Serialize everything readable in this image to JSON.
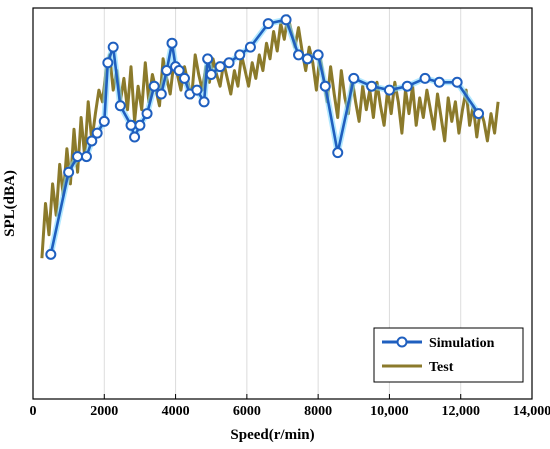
{
  "chart_data": {
    "type": "line",
    "title": "",
    "xlabel": "Speed(r/min)",
    "ylabel": "SPL(dBA)",
    "xlim": [
      0,
      14000
    ],
    "ylim": [
      0,
      1
    ],
    "x_ticks": [
      0,
      2000,
      4000,
      6000,
      8000,
      10000,
      12000,
      14000
    ],
    "x_tick_labels": [
      "0",
      "2000",
      "4000",
      "6000",
      "8000",
      "10,000",
      "12,000",
      "14,000"
    ],
    "y_tick_labels_shown": false,
    "grid": true,
    "legend_position": "bottom-right",
    "series": [
      {
        "name": "Simulation",
        "color": "#1f5fbf",
        "marker": "circle",
        "x": [
          500,
          1000,
          1250,
          1500,
          1650,
          1800,
          2000,
          2100,
          2250,
          2450,
          2750,
          2850,
          3000,
          3200,
          3400,
          3600,
          3750,
          3900,
          4000,
          4100,
          4250,
          4400,
          4600,
          4800,
          4900,
          5000,
          5250,
          5500,
          5800,
          6100,
          6600,
          7100,
          7450,
          7700,
          8000,
          8200,
          8550,
          9000,
          9500,
          10000,
          10500,
          11000,
          11400,
          11900,
          12500
        ],
        "y": [
          0.37,
          0.58,
          0.62,
          0.62,
          0.66,
          0.68,
          0.71,
          0.86,
          0.9,
          0.75,
          0.7,
          0.67,
          0.7,
          0.73,
          0.8,
          0.78,
          0.84,
          0.91,
          0.85,
          0.84,
          0.82,
          0.78,
          0.79,
          0.76,
          0.87,
          0.83,
          0.85,
          0.86,
          0.88,
          0.9,
          0.96,
          0.97,
          0.88,
          0.87,
          0.88,
          0.8,
          0.63,
          0.82,
          0.8,
          0.79,
          0.8,
          0.82,
          0.81,
          0.81,
          0.73
        ]
      },
      {
        "name": "Test",
        "color": "#8b7a2b",
        "marker": "none",
        "x": [
          250,
          350,
          450,
          550,
          650,
          750,
          850,
          950,
          1050,
          1150,
          1250,
          1350,
          1450,
          1550,
          1650,
          1750,
          1850,
          1950,
          2050,
          2150,
          2250,
          2350,
          2450,
          2550,
          2650,
          2750,
          2850,
          2950,
          3050,
          3150,
          3250,
          3350,
          3450,
          3550,
          3650,
          3750,
          3850,
          3950,
          4050,
          4150,
          4250,
          4350,
          4450,
          4550,
          4650,
          4750,
          4850,
          4950,
          5050,
          5150,
          5250,
          5350,
          5450,
          5550,
          5650,
          5750,
          5850,
          5950,
          6050,
          6150,
          6250,
          6350,
          6450,
          6550,
          6650,
          6750,
          6850,
          6950,
          7050,
          7150,
          7250,
          7350,
          7450,
          7550,
          7650,
          7750,
          7850,
          7950,
          8050,
          8150,
          8250,
          8350,
          8450,
          8550,
          8650,
          8750,
          8850,
          8950,
          9050,
          9150,
          9250,
          9350,
          9450,
          9550,
          9650,
          9750,
          9850,
          9950,
          10050,
          10150,
          10250,
          10350,
          10450,
          10550,
          10650,
          10750,
          10850,
          10950,
          11050,
          11150,
          11250,
          11350,
          11450,
          11550,
          11650,
          11750,
          11850,
          11950,
          12050,
          12150,
          12250,
          12350,
          12450,
          12550,
          12650,
          12750,
          12850,
          12950,
          13050
        ],
        "y": [
          0.36,
          0.5,
          0.42,
          0.55,
          0.47,
          0.6,
          0.52,
          0.64,
          0.55,
          0.69,
          0.58,
          0.72,
          0.62,
          0.76,
          0.66,
          0.73,
          0.79,
          0.76,
          0.84,
          0.88,
          0.79,
          0.84,
          0.76,
          0.82,
          0.74,
          0.85,
          0.71,
          0.8,
          0.74,
          0.86,
          0.76,
          0.83,
          0.79,
          0.75,
          0.87,
          0.82,
          0.78,
          0.86,
          0.83,
          0.79,
          0.85,
          0.81,
          0.77,
          0.88,
          0.83,
          0.79,
          0.85,
          0.81,
          0.87,
          0.83,
          0.8,
          0.86,
          0.82,
          0.78,
          0.84,
          0.8,
          0.88,
          0.84,
          0.8,
          0.86,
          0.82,
          0.88,
          0.84,
          0.91,
          0.87,
          0.94,
          0.89,
          0.96,
          0.92,
          0.98,
          0.94,
          0.9,
          0.95,
          0.89,
          0.84,
          0.9,
          0.86,
          0.79,
          0.88,
          0.82,
          0.76,
          0.85,
          0.78,
          0.72,
          0.84,
          0.77,
          0.73,
          0.82,
          0.76,
          0.71,
          0.8,
          0.74,
          0.79,
          0.72,
          0.81,
          0.75,
          0.7,
          0.79,
          0.73,
          0.81,
          0.76,
          0.68,
          0.79,
          0.73,
          0.8,
          0.7,
          0.77,
          0.72,
          0.79,
          0.74,
          0.69,
          0.78,
          0.72,
          0.66,
          0.77,
          0.71,
          0.76,
          0.68,
          0.74,
          0.79,
          0.7,
          0.75,
          0.67,
          0.74,
          0.71,
          0.66,
          0.73,
          0.68,
          0.76
        ]
      }
    ]
  }
}
